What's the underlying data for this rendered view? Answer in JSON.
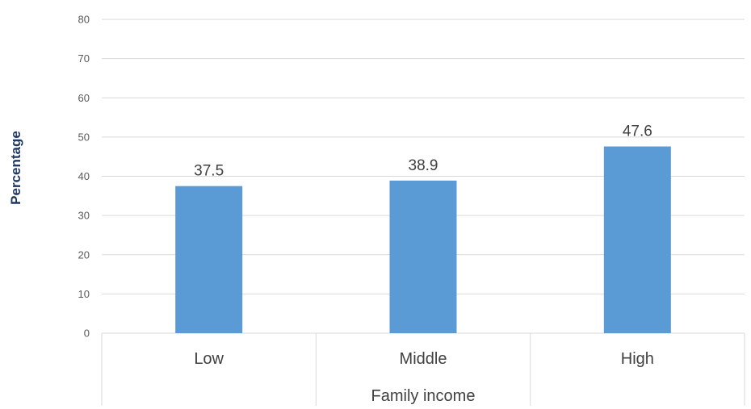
{
  "chart_data": {
    "type": "bar",
    "title": "",
    "xlabel": "Family income",
    "ylabel": "Percentage",
    "categories": [
      "Low",
      "Middle",
      "High"
    ],
    "values": [
      37.5,
      38.9,
      47.6
    ],
    "data_labels": [
      "37.5",
      "38.9",
      "47.6"
    ],
    "ylim": [
      0,
      80
    ],
    "yticks": [
      0,
      10,
      20,
      30,
      40,
      50,
      60,
      70,
      80
    ],
    "grid": true,
    "legend": "none",
    "bar_color": "#5b9bd5",
    "gridline_color": "#d9d9d9",
    "ylabel_color": "#1f3864"
  }
}
